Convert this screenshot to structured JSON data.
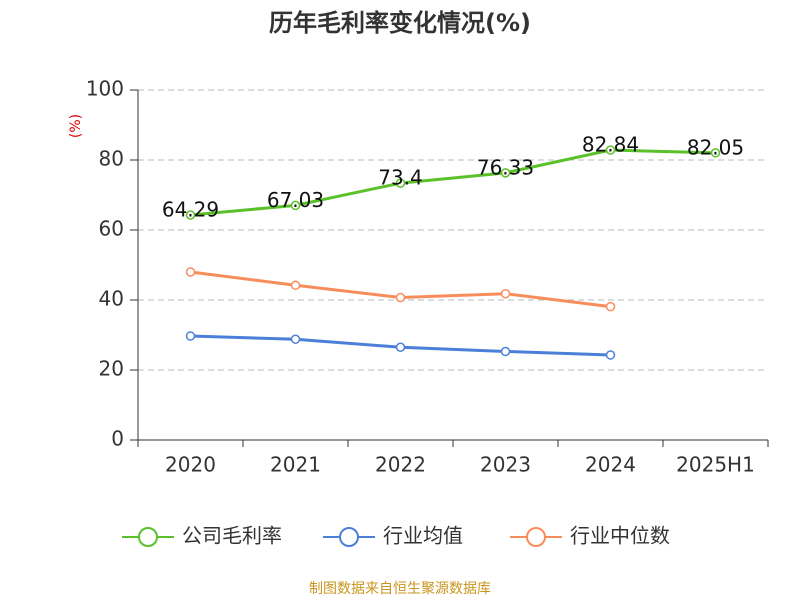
{
  "chart_data": {
    "type": "line",
    "title": "历年毛利率变化情况(%)",
    "y_label": "(%)",
    "categories": [
      "2020",
      "2021",
      "2022",
      "2023",
      "2024",
      "2025H1"
    ],
    "series": [
      {
        "name": "公司毛利率",
        "color": "#5ac12a",
        "values": [
          64.29,
          67.03,
          73.4,
          76.33,
          82.84,
          82.05
        ],
        "labels": true
      },
      {
        "name": "行业均值",
        "color": "#4b7fd9",
        "values": [
          29.7,
          28.8,
          26.5,
          25.3,
          24.3,
          null
        ]
      },
      {
        "name": "行业中位数",
        "color": "#f88d5c",
        "values": [
          48.0,
          44.2,
          40.7,
          41.8,
          38.1,
          null
        ]
      }
    ],
    "ylim": [
      0,
      100
    ],
    "yticks": [
      0,
      20,
      40,
      60,
      80,
      100
    ],
    "grid": true,
    "source": "制图数据来自恒生聚源数据库"
  }
}
